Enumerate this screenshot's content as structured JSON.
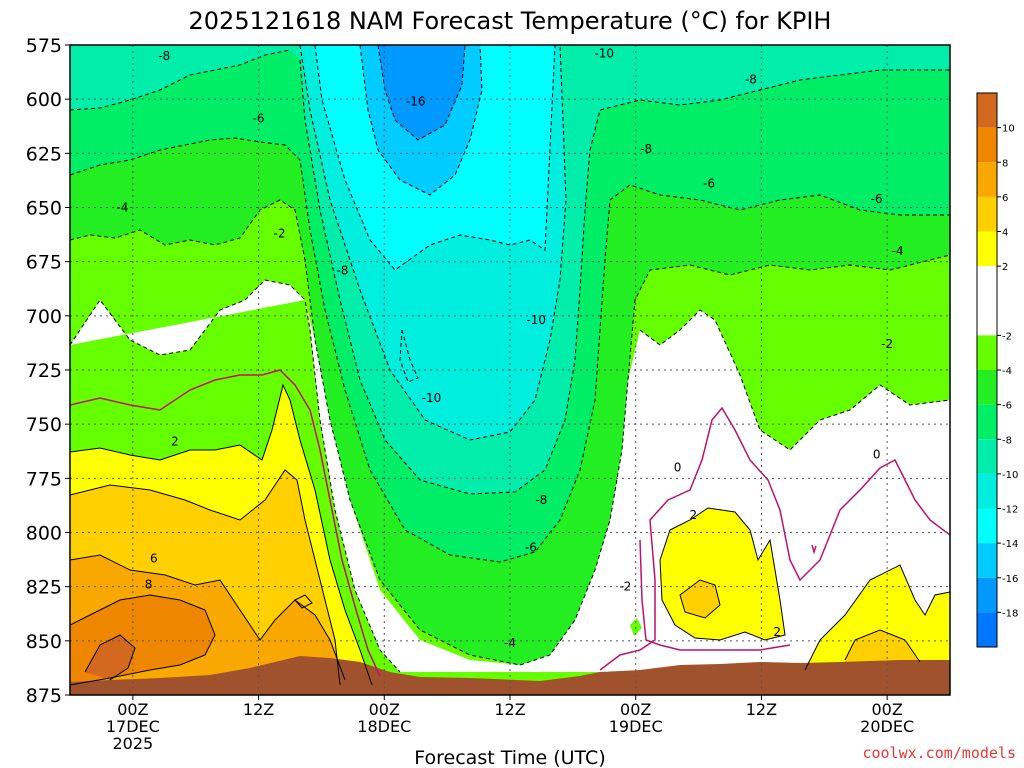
{
  "chart_data": {
    "type": "heatmap",
    "title": "2025121618 NAM Forecast Temperature (°C) for KPIH",
    "xlabel": "Forecast Time (UTC)",
    "ylabel": "",
    "watermark": "coolwx.com/models",
    "y_axis": {
      "range": [
        875,
        575
      ],
      "ticks": [
        "575",
        "600",
        "625",
        "650",
        "675",
        "700",
        "725",
        "750",
        "775",
        "800",
        "825",
        "850",
        "875"
      ]
    },
    "x_axis": {
      "range_hours": [
        -6,
        78
      ],
      "ticks": [
        {
          "hour": 0,
          "lines": [
            "00Z",
            "17DEC",
            "2025"
          ]
        },
        {
          "hour": 12,
          "lines": [
            "12Z"
          ]
        },
        {
          "hour": 24,
          "lines": [
            "00Z",
            "18DEC"
          ]
        },
        {
          "hour": 36,
          "lines": [
            "12Z"
          ]
        },
        {
          "hour": 48,
          "lines": [
            "00Z",
            "19DEC"
          ]
        },
        {
          "hour": 60,
          "lines": [
            "12Z"
          ]
        },
        {
          "hour": 72,
          "lines": [
            "00Z",
            "20DEC"
          ]
        }
      ]
    },
    "colorbar": {
      "labels": [
        "10",
        "8",
        "6",
        "4",
        "2",
        "-2",
        "-4",
        "-6",
        "-8",
        "-10",
        "-12",
        "-14",
        "-16",
        "-18"
      ],
      "bands": [
        {
          "from": 10,
          "to": 12,
          "color": "#d2691e"
        },
        {
          "from": 8,
          "to": 10,
          "color": "#ee8600"
        },
        {
          "from": 6,
          "to": 8,
          "color": "#f8a800"
        },
        {
          "from": 4,
          "to": 6,
          "color": "#ffd000"
        },
        {
          "from": 2,
          "to": 4,
          "color": "#ffff00"
        },
        {
          "from": -2,
          "to": 2,
          "color": "#ffffff"
        },
        {
          "from": -4,
          "to": -2,
          "color": "#66ff00"
        },
        {
          "from": -6,
          "to": -4,
          "color": "#22ee22"
        },
        {
          "from": -8,
          "to": -6,
          "color": "#00ee66"
        },
        {
          "from": -10,
          "to": -8,
          "color": "#00eeaa"
        },
        {
          "from": -12,
          "to": -10,
          "color": "#00eedd"
        },
        {
          "from": -14,
          "to": -12,
          "color": "#00ffff"
        },
        {
          "from": -16,
          "to": -14,
          "color": "#00ccff"
        },
        {
          "from": -18,
          "to": -16,
          "color": "#0099ff"
        },
        {
          "from": -20,
          "to": -18,
          "color": "#0077ff"
        }
      ]
    },
    "contour_labels": [
      {
        "text": "-8",
        "hour": 3,
        "pressure": 580
      },
      {
        "text": "-6",
        "hour": 12,
        "pressure": 609
      },
      {
        "text": "-4",
        "hour": -1,
        "pressure": 650
      },
      {
        "text": "-2",
        "hour": 14,
        "pressure": 662
      },
      {
        "text": "-8",
        "hour": 20,
        "pressure": 679
      },
      {
        "text": "-16",
        "hour": 27,
        "pressure": 601
      },
      {
        "text": "-10",
        "hour": 45,
        "pressure": 579
      },
      {
        "text": "-8",
        "hour": 59,
        "pressure": 591
      },
      {
        "text": "-8",
        "hour": 49,
        "pressure": 623
      },
      {
        "text": "-6",
        "hour": 55,
        "pressure": 639
      },
      {
        "text": "-6",
        "hour": 71,
        "pressure": 646
      },
      {
        "text": "-4",
        "hour": 73,
        "pressure": 670
      },
      {
        "text": "-10",
        "hour": 38.5,
        "pressure": 702
      },
      {
        "text": "-10",
        "hour": 28.5,
        "pressure": 738
      },
      {
        "text": "-8",
        "hour": 39,
        "pressure": 785
      },
      {
        "text": "-6",
        "hour": 38,
        "pressure": 807
      },
      {
        "text": "-4",
        "hour": 36,
        "pressure": 851
      },
      {
        "text": "-2",
        "hour": 72,
        "pressure": 713
      },
      {
        "text": "2",
        "hour": 4,
        "pressure": 758
      },
      {
        "text": "6",
        "hour": 2,
        "pressure": 812
      },
      {
        "text": "8",
        "hour": 1.5,
        "pressure": 824
      },
      {
        "text": "0",
        "hour": 52,
        "pressure": 770
      },
      {
        "text": "0",
        "hour": 71,
        "pressure": 764
      },
      {
        "text": "2",
        "hour": 53.5,
        "pressure": 792
      },
      {
        "text": "-2",
        "hour": 47,
        "pressure": 825
      },
      {
        "text": "2",
        "hour": 61.5,
        "pressure": 846
      }
    ]
  }
}
